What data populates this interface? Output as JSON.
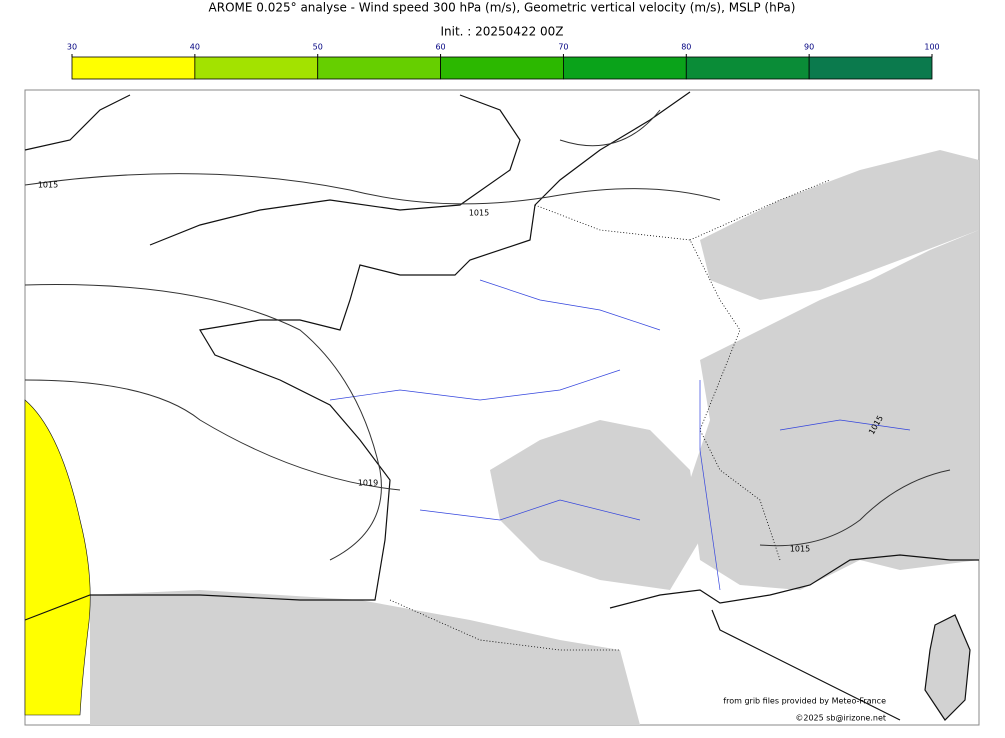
{
  "header": {
    "title": "AROME 0.025° analyse - Wind speed 300 hPa (m/s), Geometric vertical velocity (m/s), MSLP (hPa)",
    "subtitle": "Init. : 20250422 00Z"
  },
  "colorbar": {
    "ticks": [
      30,
      40,
      50,
      60,
      70,
      80,
      90,
      100
    ],
    "colors": [
      "#ffff00",
      "#a3e200",
      "#66cf00",
      "#2cb800",
      "#0aa31a",
      "#0a8c37",
      "#0b7a4d"
    ]
  },
  "isobar_labels": [
    "1015",
    "1015",
    "1019",
    "1015",
    "1015"
  ],
  "credits": [
    "from grib files provided by Meteo-France",
    "©2025 sb@irizone.net"
  ]
}
